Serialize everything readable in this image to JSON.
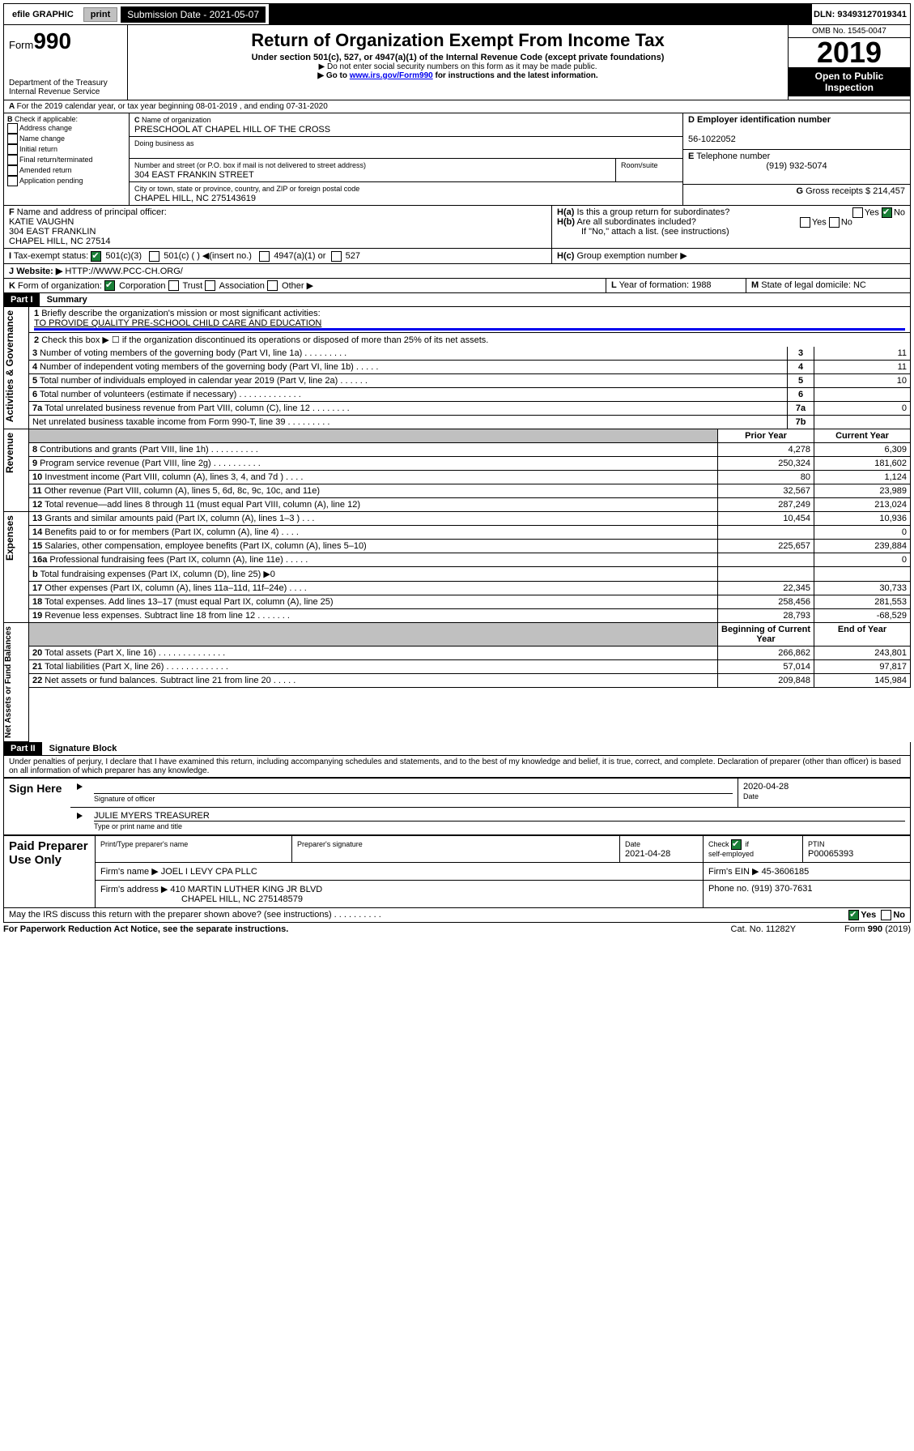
{
  "toolbar": {
    "efile": "efile GRAPHIC",
    "print": "print",
    "sub_label": "Submission Date - 2021-05-07",
    "dln": "DLN: 93493127019341"
  },
  "header": {
    "form_label": "Form",
    "form_num": "990",
    "dept": "Department of the Treasury\nInternal Revenue Service",
    "title": "Return of Organization Exempt From Income Tax",
    "sub": "Under section 501(c), 527, or 4947(a)(1) of the Internal Revenue Code (except private foundations)",
    "note1": "▶ Do not enter social security numbers on this form as it may be made public.",
    "note2": "▶ Go to www.irs.gov/Form990 for instructions and the latest information.",
    "omb": "OMB No. 1545-0047",
    "year": "2019",
    "open": "Open to Public Inspection"
  },
  "A": {
    "text": "For the 2019 calendar year, or tax year beginning 08-01-2019   , and ending 07-31-2020"
  },
  "B": {
    "label": "Check if applicable:",
    "opts": [
      "Address change",
      "Name change",
      "Initial return",
      "Final return/terminated",
      "Amended return",
      "Application pending"
    ]
  },
  "C": {
    "name_lbl": "Name of organization",
    "name": "PRESCHOOL AT CHAPEL HILL OF THE CROSS",
    "dba_lbl": "Doing business as",
    "dba": "",
    "addr_lbl": "Number and street (or P.O. box if mail is not delivered to street address)",
    "addr": "304 EAST FRANKIN STREET",
    "room_lbl": "Room/suite",
    "city_lbl": "City or town, state or province, country, and ZIP or foreign postal code",
    "city": "CHAPEL HILL, NC  275143619"
  },
  "D": {
    "lbl": "Employer identification number",
    "val": "56-1022052"
  },
  "E": {
    "lbl": "Telephone number",
    "val": "(919) 932-5074"
  },
  "G": {
    "lbl": "Gross receipts $",
    "val": "214,457"
  },
  "F": {
    "lbl": "Name and address of principal officer:",
    "name": "KATIE VAUGHN",
    "l1": "304 EAST FRANKLIN",
    "l2": "CHAPEL HILL, NC  27514"
  },
  "H": {
    "a": "Is this a group return for subordinates?",
    "b": "Are all subordinates included?",
    "bnote": "If \"No,\" attach a list. (see instructions)",
    "c": "Group exemption number ▶",
    "yes": "Yes",
    "no": "No"
  },
  "I": {
    "lbl": "Tax-exempt status:",
    "o1": "501(c)(3)",
    "o2": "501(c) (  ) ◀(insert no.)",
    "o3": "4947(a)(1) or",
    "o4": "527"
  },
  "J": {
    "lbl": "Website: ▶",
    "val": "HTTP://WWW.PCC-CH.ORG/"
  },
  "K": {
    "lbl": "Form of organization:",
    "o1": "Corporation",
    "o2": "Trust",
    "o3": "Association",
    "o4": "Other ▶"
  },
  "L": {
    "lbl": "Year of formation:",
    "val": "1988"
  },
  "M": {
    "lbl": "State of legal domicile:",
    "val": "NC"
  },
  "part1": {
    "hdr": "Part I",
    "title": "Summary"
  },
  "summary": {
    "q1": "Briefly describe the organization's mission or most significant activities:",
    "mission": "TO PROVIDE QUALITY PRE-SCHOOL CHILD CARE AND EDUCATION",
    "q2": "Check this box ▶ ☐ if the organization discontinued its operations or disposed of more than 25% of its net assets.",
    "rows": [
      {
        "n": "3",
        "t": "Number of voting members of the governing body (Part VI, line 1a)  .  .  .  .  .  .  .  .  .",
        "box": "3",
        "v": "11"
      },
      {
        "n": "4",
        "t": "Number of independent voting members of the governing body (Part VI, line 1b)  .  .  .  .  .",
        "box": "4",
        "v": "11"
      },
      {
        "n": "5",
        "t": "Total number of individuals employed in calendar year 2019 (Part V, line 2a)  .  .  .  .  .  .",
        "box": "5",
        "v": "10"
      },
      {
        "n": "6",
        "t": "Total number of volunteers (estimate if necessary)  .  .  .  .  .  .  .  .  .  .  .  .  .",
        "box": "6",
        "v": ""
      },
      {
        "n": "7a",
        "t": "Total unrelated business revenue from Part VIII, column (C), line 12  .  .  .  .  .  .  .  .",
        "box": "7a",
        "v": "0"
      },
      {
        "n": "",
        "t": "Net unrelated business taxable income from Form 990-T, line 39  .  .  .  .  .  .  .  .  .",
        "box": "7b",
        "v": ""
      }
    ],
    "col_prior": "Prior Year",
    "col_curr": "Current Year",
    "rev": [
      {
        "n": "8",
        "t": "Contributions and grants (Part VIII, line 1h)  .  .  .  .  .  .  .  .  .  .",
        "p": "4,278",
        "c": "6,309"
      },
      {
        "n": "9",
        "t": "Program service revenue (Part VIII, line 2g)  .  .  .  .  .  .  .  .  .  .",
        "p": "250,324",
        "c": "181,602"
      },
      {
        "n": "10",
        "t": "Investment income (Part VIII, column (A), lines 3, 4, and 7d )  .  .  .  .",
        "p": "80",
        "c": "1,124"
      },
      {
        "n": "11",
        "t": "Other revenue (Part VIII, column (A), lines 5, 6d, 8c, 9c, 10c, and 11e)",
        "p": "32,567",
        "c": "23,989"
      },
      {
        "n": "12",
        "t": "Total revenue—add lines 8 through 11 (must equal Part VIII, column (A), line 12)",
        "p": "287,249",
        "c": "213,024"
      }
    ],
    "exp": [
      {
        "n": "13",
        "t": "Grants and similar amounts paid (Part IX, column (A), lines 1–3 )  .  .  .",
        "p": "10,454",
        "c": "10,936"
      },
      {
        "n": "14",
        "t": "Benefits paid to or for members (Part IX, column (A), line 4)  .  .  .  .",
        "p": "",
        "c": "0"
      },
      {
        "n": "15",
        "t": "Salaries, other compensation, employee benefits (Part IX, column (A), lines 5–10)",
        "p": "225,657",
        "c": "239,884"
      },
      {
        "n": "16a",
        "t": "Professional fundraising fees (Part IX, column (A), line 11e)  .  .  .  .  .",
        "p": "",
        "c": "0"
      },
      {
        "n": "b",
        "t": "Total fundraising expenses (Part IX, column (D), line 25) ▶0",
        "p": "",
        "c": "",
        "grey": true
      },
      {
        "n": "17",
        "t": "Other expenses (Part IX, column (A), lines 11a–11d, 11f–24e)  .  .  .  .",
        "p": "22,345",
        "c": "30,733"
      },
      {
        "n": "18",
        "t": "Total expenses. Add lines 13–17 (must equal Part IX, column (A), line 25)",
        "p": "258,456",
        "c": "281,553"
      },
      {
        "n": "19",
        "t": "Revenue less expenses. Subtract line 18 from line 12  .  .  .  .  .  .  .",
        "p": "28,793",
        "c": "-68,529"
      }
    ],
    "col_beg": "Beginning of Current Year",
    "col_end": "End of Year",
    "net": [
      {
        "n": "20",
        "t": "Total assets (Part X, line 16)  .  .  .  .  .  .  .  .  .  .  .  .  .  .",
        "p": "266,862",
        "c": "243,801"
      },
      {
        "n": "21",
        "t": "Total liabilities (Part X, line 26)  .  .  .  .  .  .  .  .  .  .  .  .  .",
        "p": "57,014",
        "c": "97,817"
      },
      {
        "n": "22",
        "t": "Net assets or fund balances. Subtract line 21 from line 20  .  .  .  .  .",
        "p": "209,848",
        "c": "145,984"
      }
    ],
    "side_labels": {
      "gov": "Activities & Governance",
      "rev": "Revenue",
      "exp": "Expenses",
      "net": "Net Assets or Fund Balances"
    }
  },
  "part2": {
    "hdr": "Part II",
    "title": "Signature Block",
    "decl": "Under penalties of perjury, I declare that I have examined this return, including accompanying schedules and statements, and to the best of my knowledge and belief, it is true, correct, and complete. Declaration of preparer (other than officer) is based on all information of which preparer has any knowledge."
  },
  "sign": {
    "here": "Sign Here",
    "sig_lbl": "Signature of officer",
    "date": "2020-04-28",
    "date_lbl": "Date",
    "name": "JULIE MYERS  TREASURER",
    "name_lbl": "Type or print name and title"
  },
  "paid": {
    "here": "Paid Preparer Use Only",
    "h1": "Print/Type preparer's name",
    "h2": "Preparer's signature",
    "h3": "Date",
    "h4": "Check ☑ if self-employed",
    "h5": "PTIN",
    "pdate": "2021-04-28",
    "ptin": "P00065393",
    "firm_lbl": "Firm's name   ▶",
    "firm": "JOEL I LEVY CPA PLLC",
    "ein_lbl": "Firm's EIN ▶",
    "ein": "45-3606185",
    "addr_lbl": "Firm's address ▶",
    "addr1": "410 MARTIN LUTHER KING JR BLVD",
    "addr2": "CHAPEL HILL, NC  275148579",
    "ph_lbl": "Phone no.",
    "ph": "(919) 370-7631"
  },
  "foot": {
    "q": "May the IRS discuss this return with the preparer shown above? (see instructions)   .  .  .  .  .  .  .  .  .  .",
    "notice": "For Paperwork Reduction Act Notice, see the separate instructions.",
    "cat": "Cat. No. 11282Y",
    "form": "Form 990 (2019)"
  }
}
